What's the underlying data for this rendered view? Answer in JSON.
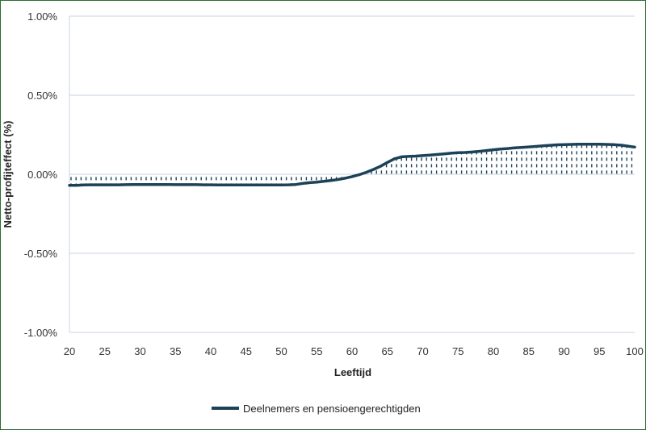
{
  "chart_data": {
    "type": "line",
    "title": "",
    "xlabel": "Leeftijd",
    "ylabel": "Netto-profijteffect (%)",
    "xlim": [
      20,
      100
    ],
    "ylim": [
      -1.0,
      1.0
    ],
    "x_ticks": [
      20,
      25,
      30,
      35,
      40,
      45,
      50,
      55,
      60,
      65,
      70,
      75,
      80,
      85,
      90,
      95,
      100
    ],
    "x_tick_labels": [
      "20",
      "25",
      "30",
      "35",
      "40",
      "45",
      "50",
      "55",
      "60",
      "65",
      "70",
      "75",
      "80",
      "85",
      "90",
      "95",
      "100"
    ],
    "y_ticks": [
      1.0,
      0.5,
      0.0,
      -0.5,
      -1.0
    ],
    "y_tick_labels": [
      "1.00%",
      "0.50%",
      "0.00%",
      "-0.50%",
      "-1.00%"
    ],
    "grid": true,
    "legend_position": "bottom-center",
    "series": [
      {
        "name": "Deelnemers en pensioengerechtigden",
        "color": "#1d4258",
        "fill": "hatched-to-zero",
        "x": [
          20,
          21,
          22,
          23,
          24,
          25,
          26,
          27,
          28,
          29,
          30,
          31,
          32,
          33,
          34,
          35,
          36,
          37,
          38,
          39,
          40,
          41,
          42,
          43,
          44,
          45,
          46,
          47,
          48,
          49,
          50,
          51,
          52,
          53,
          54,
          55,
          56,
          57,
          58,
          59,
          60,
          61,
          62,
          63,
          64,
          65,
          66,
          67,
          68,
          69,
          70,
          71,
          72,
          73,
          74,
          75,
          76,
          77,
          78,
          79,
          80,
          81,
          82,
          83,
          84,
          85,
          86,
          87,
          88,
          89,
          90,
          91,
          92,
          93,
          94,
          95,
          96,
          97,
          98,
          99,
          100
        ],
        "values": [
          -0.07,
          -0.07,
          -0.068,
          -0.067,
          -0.067,
          -0.067,
          -0.067,
          -0.067,
          -0.066,
          -0.065,
          -0.065,
          -0.065,
          -0.065,
          -0.065,
          -0.065,
          -0.066,
          -0.066,
          -0.066,
          -0.066,
          -0.067,
          -0.067,
          -0.068,
          -0.068,
          -0.068,
          -0.068,
          -0.068,
          -0.068,
          -0.068,
          -0.068,
          -0.068,
          -0.068,
          -0.067,
          -0.065,
          -0.058,
          -0.053,
          -0.05,
          -0.045,
          -0.04,
          -0.033,
          -0.025,
          -0.015,
          -0.003,
          0.012,
          0.03,
          0.05,
          0.075,
          0.098,
          0.11,
          0.113,
          0.115,
          0.118,
          0.121,
          0.125,
          0.129,
          0.133,
          0.136,
          0.138,
          0.141,
          0.145,
          0.15,
          0.155,
          0.159,
          0.163,
          0.167,
          0.17,
          0.173,
          0.176,
          0.18,
          0.183,
          0.186,
          0.188,
          0.189,
          0.19,
          0.19,
          0.19,
          0.19,
          0.189,
          0.187,
          0.184,
          0.178,
          0.172
        ]
      }
    ]
  }
}
